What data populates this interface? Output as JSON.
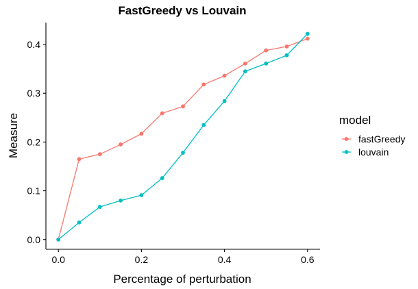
{
  "chart_data": {
    "type": "line",
    "title": "FastGreedy vs Louvain",
    "xlabel": "Percentage of perturbation",
    "ylabel": "Measure",
    "xlim": [
      -0.03,
      0.63
    ],
    "ylim": [
      -0.02,
      0.445
    ],
    "x_ticks": [
      0.0,
      0.2,
      0.4,
      0.6
    ],
    "x_tick_labels": [
      "0.0",
      "0.2",
      "0.4",
      "0.6"
    ],
    "y_ticks": [
      0.0,
      0.1,
      0.2,
      0.3,
      0.4
    ],
    "y_tick_labels": [
      "0.0",
      "0.1",
      "0.2",
      "0.3",
      "0.4"
    ],
    "grid": false,
    "legend": {
      "title": "model",
      "position": "right"
    },
    "x": [
      0.0,
      0.05,
      0.1,
      0.15,
      0.2,
      0.25,
      0.3,
      0.35,
      0.4,
      0.45,
      0.5,
      0.55,
      0.6
    ],
    "series": [
      {
        "name": "fastGreedy",
        "color": "#F8766D",
        "values": [
          0.0,
          0.165,
          0.175,
          0.195,
          0.217,
          0.259,
          0.273,
          0.318,
          0.336,
          0.361,
          0.388,
          0.396,
          0.412
        ]
      },
      {
        "name": "louvain",
        "color": "#00BFC4",
        "values": [
          0.0,
          0.035,
          0.067,
          0.08,
          0.091,
          0.126,
          0.178,
          0.235,
          0.284,
          0.345,
          0.361,
          0.378,
          0.422
        ]
      }
    ]
  }
}
